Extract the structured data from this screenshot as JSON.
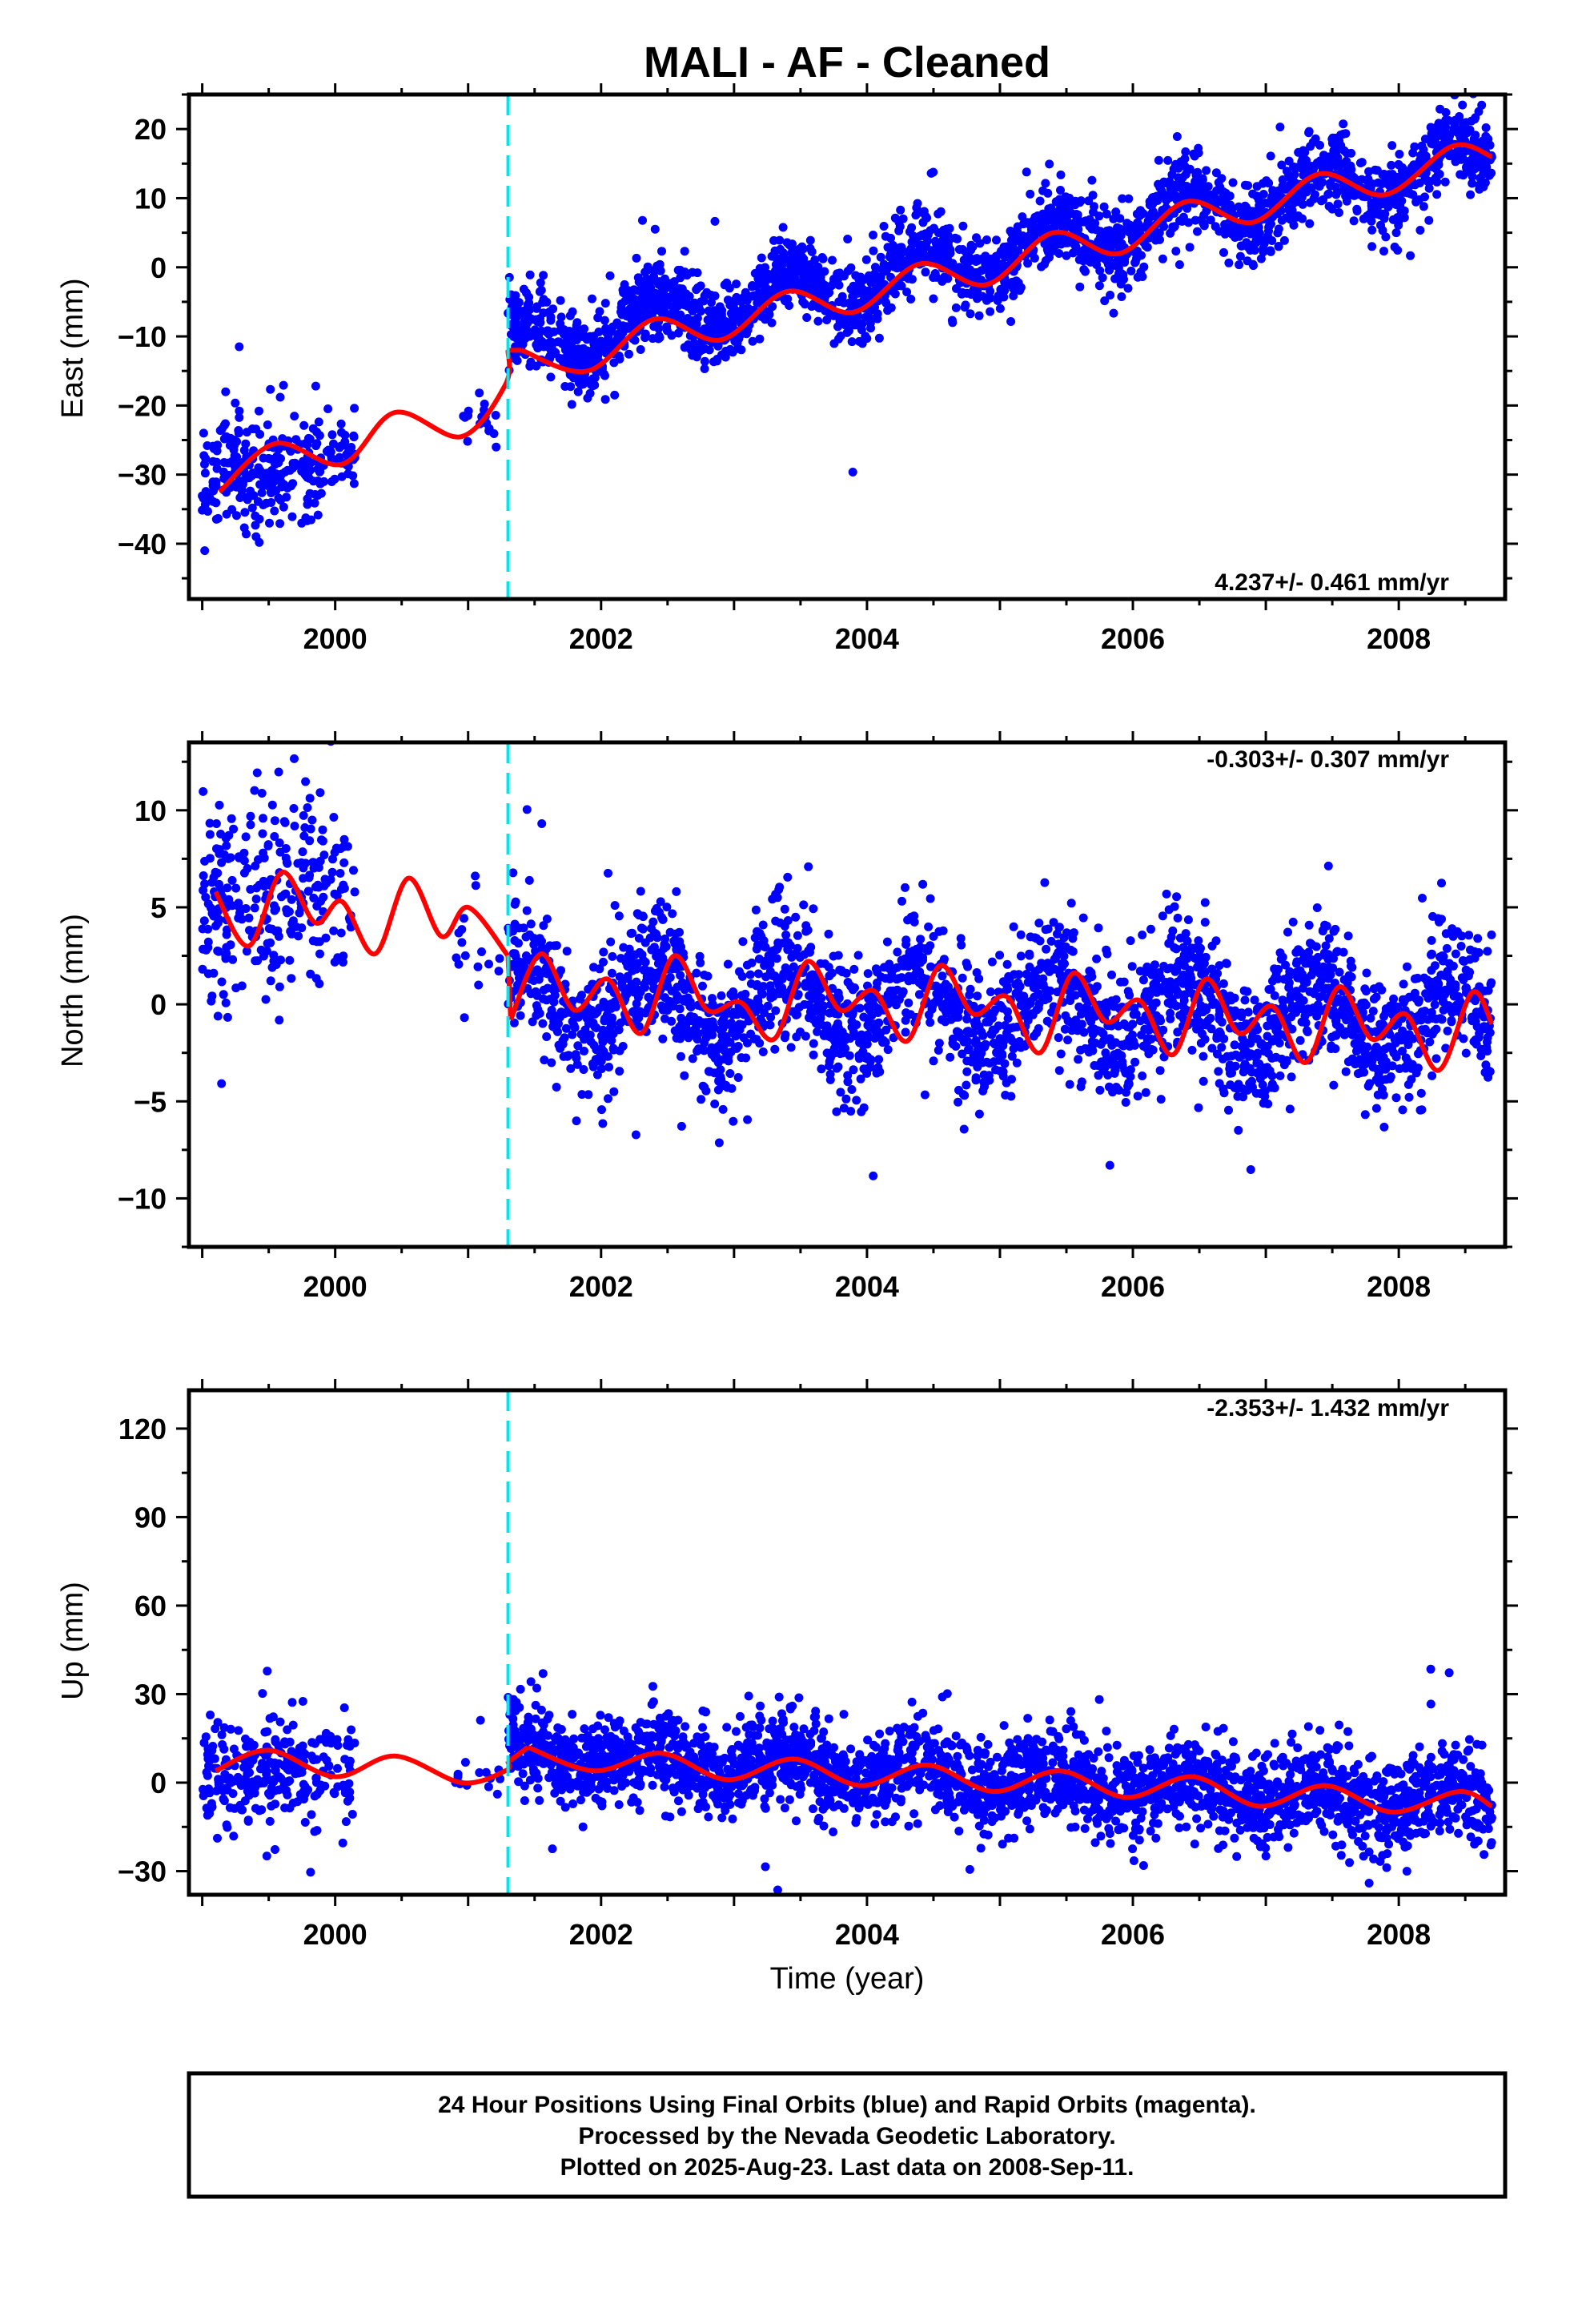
{
  "title": "MALI  - AF - Cleaned",
  "colors": {
    "points": "#0000ff",
    "model": "#ff0000",
    "offset_line": "#00e5ee",
    "frame": "#000000"
  },
  "chart_data": [
    {
      "type": "scatter",
      "id": "east",
      "ylabel": "East (mm)",
      "xlabel": "",
      "xlim": [
        1998.9,
        2008.8
      ],
      "ylim": [
        -48,
        25
      ],
      "yticks": [
        -40,
        -30,
        -20,
        -10,
        0,
        10,
        20
      ],
      "yticks_minor": 5,
      "xticks": [
        2000,
        2002,
        2004,
        2006,
        2008
      ],
      "xticks_minor": 0.5,
      "rate_text": "4.237+/- 0.461 mm/yr",
      "rate_position": "bottom-right",
      "offset_epoch": 2001.3,
      "model": {
        "rate_mm_per_yr": 4.237,
        "x": [
          1999.13,
          1999.55,
          2000.05,
          2000.45,
          2000.95,
          2001.28,
          2001.3,
          2001.4,
          2001.9,
          2002.4,
          2002.9,
          2003.4,
          2003.9,
          2004.4,
          2004.9,
          2005.4,
          2005.9,
          2006.4,
          2006.9,
          2007.4,
          2007.9,
          2008.4,
          2008.7
        ],
        "y": [
          -32.5,
          -25.5,
          -28.5,
          -21.0,
          -24.5,
          -17.0,
          -12.0,
          -12.0,
          -15.0,
          -7.5,
          -10.5,
          -3.5,
          -6.5,
          0.5,
          -2.5,
          5.0,
          2.0,
          9.5,
          6.5,
          13.5,
          10.5,
          17.5,
          16.0
        ]
      },
      "scatter_segments": [
        {
          "x": [
            1999.0,
            1999.9
          ],
          "center": [
            -30,
            -28
          ],
          "spread": 4.0,
          "count": 260
        },
        {
          "x": [
            1999.9,
            2000.15
          ],
          "center": [
            -27,
            -27
          ],
          "spread": 2.5,
          "count": 40
        },
        {
          "x": [
            2000.9,
            2001.25
          ],
          "center": [
            -22,
            -20
          ],
          "spread": 2.0,
          "count": 18
        },
        {
          "x": [
            2001.3,
            2008.7
          ],
          "center": [
            -12,
            16
          ],
          "spread": 2.8,
          "count": 2600,
          "wobble": 3.5
        }
      ]
    },
    {
      "type": "scatter",
      "id": "north",
      "ylabel": "North (mm)",
      "xlabel": "",
      "xlim": [
        1998.9,
        2008.8
      ],
      "ylim": [
        -12.5,
        13.5
      ],
      "yticks": [
        -10,
        -5,
        0,
        5,
        10
      ],
      "yticks_minor": 2.5,
      "xticks": [
        2000,
        2002,
        2004,
        2006,
        2008
      ],
      "xticks_minor": 0.5,
      "rate_text": "-0.303+/- 0.307 mm/yr",
      "rate_position": "top-right",
      "offset_epoch": 2001.3,
      "model": {
        "rate_mm_per_yr": -0.303,
        "x": [
          1999.1,
          1999.35,
          1999.6,
          1999.85,
          2000.05,
          2000.3,
          2000.55,
          2000.8,
          2001.0,
          2001.3,
          2001.32,
          2001.55,
          2001.8,
          2002.05,
          2002.3,
          2002.55,
          2002.8,
          2003.05,
          2003.3,
          2003.55,
          2003.8,
          2004.05,
          2004.3,
          2004.55,
          2004.8,
          2005.05,
          2005.3,
          2005.55,
          2005.8,
          2006.05,
          2006.3,
          2006.55,
          2006.8,
          2007.05,
          2007.3,
          2007.55,
          2007.8,
          2008.05,
          2008.3,
          2008.55,
          2008.7
        ],
        "y": [
          5.8,
          3.0,
          6.8,
          4.2,
          5.3,
          2.6,
          6.5,
          3.5,
          5.0,
          2.5,
          -0.8,
          2.6,
          -0.3,
          1.3,
          -1.5,
          2.5,
          -0.3,
          0.1,
          -1.8,
          2.2,
          -0.3,
          0.7,
          -1.9,
          2.0,
          -0.5,
          0.4,
          -2.5,
          1.6,
          -0.9,
          0.2,
          -2.6,
          1.3,
          -1.5,
          -0.1,
          -3.0,
          0.9,
          -1.8,
          -0.5,
          -3.4,
          0.6,
          -1.0
        ]
      },
      "scatter_segments": [
        {
          "x": [
            1999.0,
            1999.9
          ],
          "center": [
            5,
            6
          ],
          "spread": 2.8,
          "count": 240
        },
        {
          "x": [
            1999.9,
            2000.15
          ],
          "center": [
            6,
            6
          ],
          "spread": 2.0,
          "count": 40
        },
        {
          "x": [
            2000.9,
            2001.25
          ],
          "center": [
            3,
            3
          ],
          "spread": 1.6,
          "count": 16
        },
        {
          "x": [
            2001.3,
            2008.7
          ],
          "center": [
            0.5,
            -0.8
          ],
          "spread": 1.7,
          "count": 2600,
          "wobble": 1.8
        }
      ]
    },
    {
      "type": "scatter",
      "id": "up",
      "ylabel": "Up (mm)",
      "xlabel": "Time (year)",
      "xlim": [
        1998.9,
        2008.8
      ],
      "ylim": [
        -38,
        133
      ],
      "yticks": [
        -30,
        0,
        30,
        60,
        90,
        120
      ],
      "yticks_minor": 15,
      "xticks": [
        2000,
        2002,
        2004,
        2006,
        2008
      ],
      "xticks_minor": 0.5,
      "rate_text": "-2.353+/- 1.432 mm/yr",
      "rate_position": "top-right",
      "offset_epoch": 2001.3,
      "model": {
        "rate_mm_per_yr": -2.353,
        "x": [
          1999.1,
          1999.5,
          2000.0,
          2000.45,
          2000.95,
          2001.28,
          2001.3,
          2001.45,
          2001.95,
          2002.45,
          2002.95,
          2003.45,
          2003.95,
          2004.45,
          2004.95,
          2005.45,
          2005.95,
          2006.45,
          2006.95,
          2007.45,
          2007.95,
          2008.45,
          2008.7
        ],
        "y": [
          4,
          11,
          2,
          9,
          0,
          4,
          7,
          12,
          4,
          10,
          1,
          8,
          -1,
          6,
          -3,
          4,
          -5,
          2,
          -8,
          -1,
          -10,
          -3,
          -8
        ]
      },
      "scatter_segments": [
        {
          "x": [
            1999.0,
            1999.9
          ],
          "center": [
            5,
            5
          ],
          "spread": 9.0,
          "count": 240
        },
        {
          "x": [
            1999.9,
            2000.15
          ],
          "center": [
            5,
            5
          ],
          "spread": 8.0,
          "count": 40
        },
        {
          "x": [
            2000.9,
            2001.25
          ],
          "center": [
            2,
            3
          ],
          "spread": 6.0,
          "count": 14
        },
        {
          "x": [
            2001.3,
            2008.7
          ],
          "center": [
            10,
            -7
          ],
          "spread": 7.5,
          "count": 2600,
          "wobble": 4.0
        }
      ]
    }
  ],
  "footer": {
    "line1": "24 Hour Positions Using Final Orbits (blue) and Rapid Orbits (magenta).",
    "line2": "Processed by the Nevada Geodetic Laboratory.",
    "line3": "Plotted on 2025-Aug-23. Last data on 2008-Sep-11."
  }
}
